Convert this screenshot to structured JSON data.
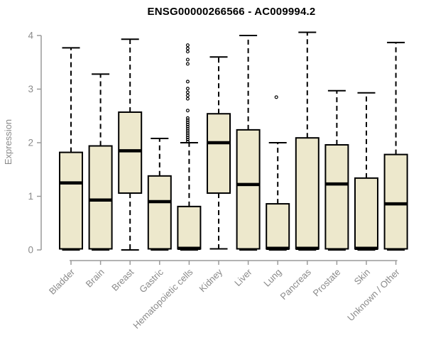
{
  "chart_data": {
    "type": "boxplot",
    "title": "ENSG00000266566 - AC009994.2",
    "xlabel": "",
    "ylabel": "Expression",
    "ylim": [
      0,
      4
    ],
    "yticks": [
      0,
      1,
      2,
      3,
      4
    ],
    "grid": false,
    "legend": false,
    "colors": {
      "box_fill": "#EDE8CC",
      "box_border": "#000000",
      "median": "#000000",
      "whisker": "#000000",
      "outlier": "#000000",
      "axis_line": "#9a9a9a",
      "axis_text": "#8a8a8a",
      "title_text": "#000000"
    },
    "categories": [
      "Bladder",
      "Brain",
      "Breast",
      "Gastric",
      "Hematopoietic cells",
      "Kidney",
      "Liver",
      "Lung",
      "Pancreas",
      "Prostate",
      "Skin",
      "Unknown / Other"
    ],
    "boxes": [
      {
        "category": "Bladder",
        "low": 0,
        "q1": 0.02,
        "median": 1.25,
        "q3": 1.82,
        "high": 3.77,
        "outliers": []
      },
      {
        "category": "Brain",
        "low": 0,
        "q1": 0.02,
        "median": 0.93,
        "q3": 1.94,
        "high": 3.28,
        "outliers": []
      },
      {
        "category": "Breast",
        "low": 0,
        "q1": 1.06,
        "median": 1.85,
        "q3": 2.57,
        "high": 3.93,
        "outliers": []
      },
      {
        "category": "Gastric",
        "low": 0,
        "q1": 0.02,
        "median": 0.9,
        "q3": 1.38,
        "high": 2.08,
        "outliers": []
      },
      {
        "category": "Hematopoietic cells",
        "low": 0,
        "q1": 0.02,
        "median": 0.03,
        "q3": 0.81,
        "high": 2.0,
        "outliers": [
          2.02,
          2.06,
          2.1,
          2.14,
          2.18,
          2.22,
          2.26,
          2.3,
          2.34,
          2.38,
          2.42,
          2.46,
          2.6,
          2.82,
          2.88,
          2.94,
          3.01,
          3.14,
          3.47,
          3.55,
          3.7,
          3.76,
          3.82
        ]
      },
      {
        "category": "Kidney",
        "low": 0.02,
        "q1": 1.06,
        "median": 2.0,
        "q3": 2.54,
        "high": 3.6,
        "outliers": []
      },
      {
        "category": "Liver",
        "low": 0,
        "q1": 0.02,
        "median": 1.22,
        "q3": 2.24,
        "high": 4.0,
        "outliers": []
      },
      {
        "category": "Lung",
        "low": 0,
        "q1": 0.02,
        "median": 0.03,
        "q3": 0.86,
        "high": 2.0,
        "outliers": [
          2.85
        ]
      },
      {
        "category": "Pancreas",
        "low": 0,
        "q1": 0.02,
        "median": 0.03,
        "q3": 2.09,
        "high": 4.06,
        "outliers": []
      },
      {
        "category": "Prostate",
        "low": 0,
        "q1": 0.02,
        "median": 1.23,
        "q3": 1.96,
        "high": 2.97,
        "outliers": []
      },
      {
        "category": "Skin",
        "low": 0,
        "q1": 0.02,
        "median": 0.03,
        "q3": 1.34,
        "high": 2.93,
        "outliers": []
      },
      {
        "category": "Unknown / Other",
        "low": 0,
        "q1": 0.02,
        "median": 0.86,
        "q3": 1.78,
        "high": 3.87,
        "outliers": []
      }
    ]
  }
}
